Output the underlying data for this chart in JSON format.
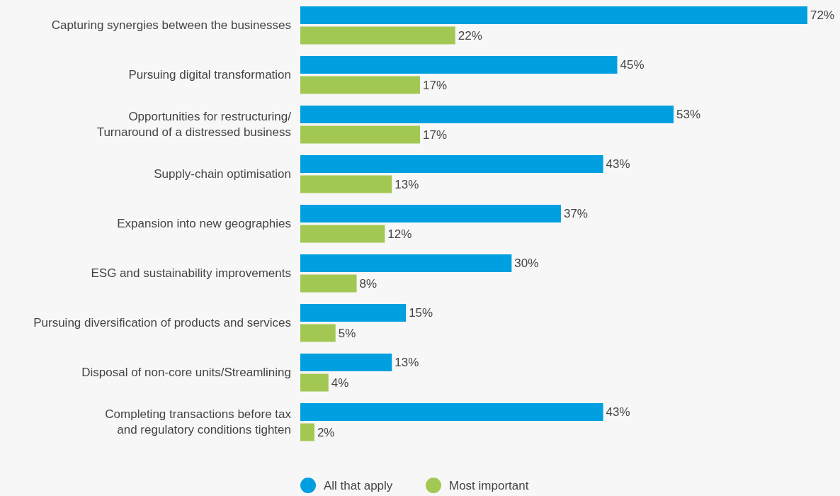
{
  "chart_data": {
    "type": "bar",
    "orientation": "horizontal",
    "legend": "bottom",
    "categories": [
      "Capturing synergies between the businesses",
      "Pursuing digital transformation",
      "Opportunities for restructuring/\nTurnaround of a distressed business",
      "Supply-chain optimisation",
      "Expansion into new geographies",
      "ESG and sustainability improvements",
      "Pursuing diversification of products and services",
      "Disposal of non-core units/Streamlining",
      "Completing transactions before tax\nand regulatory conditions tighten"
    ],
    "series": [
      {
        "name": "All that apply",
        "color": "#009fdf",
        "values": [
          72,
          45,
          53,
          43,
          37,
          30,
          15,
          13,
          43
        ],
        "value_labels": [
          "72%",
          "45%",
          "53%",
          "43%",
          "37%",
          "30%",
          "15%",
          "13%",
          "43%"
        ]
      },
      {
        "name": "Most important",
        "color": "#a2c853",
        "values": [
          22,
          17,
          17,
          13,
          12,
          8,
          5,
          4,
          2
        ],
        "value_labels": [
          "22%",
          "17%",
          "17%",
          "13%",
          "12%",
          "8%",
          "5%",
          "4%",
          "2%"
        ]
      }
    ]
  }
}
